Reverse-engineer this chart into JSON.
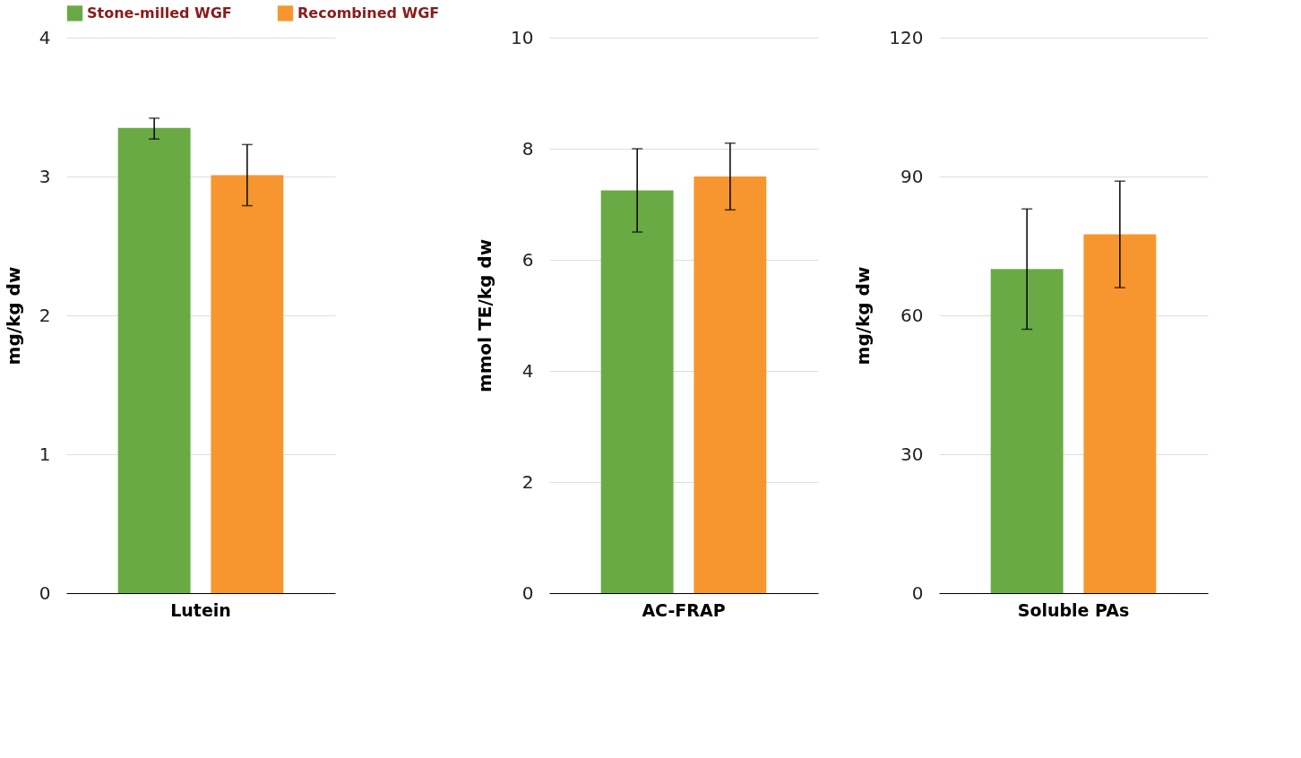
{
  "chart_data": [
    {
      "type": "bar",
      "categories": [
        "Lutein"
      ],
      "ylabel": "mg/kg dw",
      "ylim": [
        0,
        4
      ],
      "yticks": [
        0,
        1,
        2,
        3,
        4
      ],
      "grid": "y",
      "legend": "top",
      "series": [
        {
          "name": "Stone-milled WGF",
          "color": "#6aaa45",
          "values": [
            3.35
          ],
          "errors": [
            [
              3.27,
              3.42
            ]
          ]
        },
        {
          "name": "Recombined WGF",
          "color": "#f7962f",
          "values": [
            3.01
          ],
          "errors": [
            [
              2.79,
              3.23
            ]
          ]
        }
      ]
    },
    {
      "type": "bar",
      "categories": [
        "AC-FRAP"
      ],
      "ylabel": "mmol TE/kg dw",
      "ylim": [
        0,
        10
      ],
      "yticks": [
        0,
        2,
        4,
        6,
        8,
        10
      ],
      "grid": "y",
      "series": [
        {
          "color": "#6aaa45",
          "values": [
            7.25
          ],
          "errors": [
            [
              6.5,
              8.0
            ]
          ]
        },
        {
          "color": "#f7962f",
          "values": [
            7.5
          ],
          "errors": [
            [
              6.9,
              8.1
            ]
          ]
        }
      ]
    },
    {
      "type": "bar",
      "categories": [
        "Soluble PAs"
      ],
      "ylabel": "mg/kg dw",
      "ylim": [
        0,
        120
      ],
      "yticks": [
        0,
        30,
        60,
        90,
        120
      ],
      "grid": "y",
      "series": [
        {
          "color": "#6aaa45",
          "values": [
            70
          ],
          "errors": [
            [
              57,
              83
            ]
          ]
        },
        {
          "color": "#f7962f",
          "values": [
            77.5
          ],
          "errors": [
            [
              66,
              89
            ]
          ]
        }
      ]
    }
  ]
}
